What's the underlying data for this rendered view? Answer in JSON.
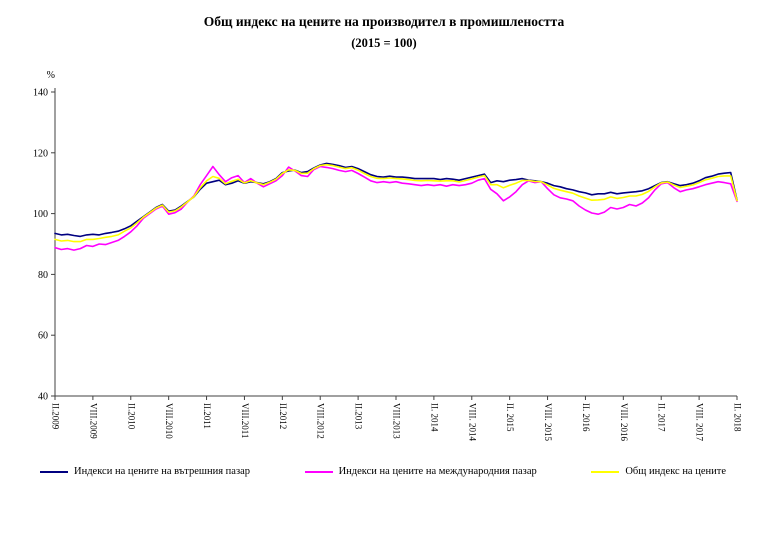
{
  "chart_data": {
    "type": "line",
    "title": "Общ индекс на цените на производител в промишлеността",
    "subtitle": "(2015 = 100)",
    "ylabel": "%",
    "ylim": [
      40,
      140
    ],
    "yticks": [
      40,
      60,
      80,
      100,
      120,
      140
    ],
    "grid": false,
    "legend_position": "bottom",
    "x_tick_every": 6,
    "x_tick_labels": [
      "II.2009",
      "VIII.2009",
      "II.2010",
      "VIII.2010",
      "II.2011",
      "VIII.2011",
      "II.2012",
      "VIII.2012",
      "II.2013",
      "VIII.2013",
      "II. 2014",
      "VIII. 2014",
      "II. 2015",
      "VIII. 2015",
      "II. 2016",
      "VIII. 2016",
      "II. 2017",
      "VIII. 2017",
      "II. 2018"
    ],
    "x_start": "II.2009",
    "x_end": "II.2018",
    "x_frequency": "monthly",
    "series": [
      {
        "name": "Индекси на цените на вътрешния пазар",
        "color": "#000080",
        "values": [
          93.5,
          93.0,
          93.2,
          92.8,
          92.5,
          93.0,
          93.2,
          93.0,
          93.5,
          93.8,
          94.2,
          95.0,
          96.0,
          97.5,
          99.0,
          100.5,
          102.0,
          103.0,
          100.8,
          101.2,
          102.5,
          104.0,
          105.5,
          108.0,
          110.0,
          110.5,
          111.0,
          109.5,
          110.0,
          110.8,
          110.0,
          110.5,
          110.2,
          109.8,
          110.5,
          111.5,
          113.5,
          114.0,
          114.3,
          113.5,
          113.8,
          115.0,
          116.0,
          116.5,
          116.2,
          115.8,
          115.2,
          115.5,
          114.8,
          113.8,
          112.8,
          112.2,
          112.0,
          112.3,
          112.0,
          112.0,
          111.8,
          111.5,
          111.5,
          111.5,
          111.5,
          111.2,
          111.5,
          111.3,
          111.0,
          111.5,
          112.0,
          112.5,
          113.0,
          110.2,
          110.8,
          110.5,
          111.0,
          111.2,
          111.5,
          111.0,
          110.8,
          110.5,
          110.0,
          109.2,
          108.8,
          108.2,
          107.8,
          107.2,
          106.8,
          106.2,
          106.5,
          106.5,
          107.0,
          106.5,
          106.8,
          107.0,
          107.2,
          107.5,
          108.2,
          109.2,
          110.2,
          110.5,
          109.8,
          109.2,
          109.5,
          110.0,
          110.8,
          111.8,
          112.3,
          113.0,
          113.3,
          113.5,
          104.5
        ]
      },
      {
        "name": "Индекси на цените на международния пазар",
        "color": "#FF00FF",
        "values": [
          88.8,
          88.2,
          88.5,
          88.0,
          88.5,
          89.5,
          89.2,
          90.0,
          89.8,
          90.5,
          91.2,
          92.5,
          94.0,
          96.0,
          98.5,
          100.0,
          101.5,
          102.5,
          99.8,
          100.3,
          101.5,
          103.8,
          105.8,
          109.5,
          112.5,
          115.5,
          112.8,
          110.5,
          111.8,
          112.5,
          110.2,
          111.5,
          110.0,
          108.8,
          109.8,
          110.8,
          112.5,
          115.3,
          114.0,
          112.5,
          112.2,
          114.5,
          115.5,
          115.2,
          114.8,
          114.2,
          113.8,
          114.2,
          113.2,
          112.0,
          110.8,
          110.2,
          110.5,
          110.2,
          110.5,
          110.0,
          109.8,
          109.5,
          109.2,
          109.5,
          109.2,
          109.5,
          109.0,
          109.5,
          109.2,
          109.5,
          110.0,
          111.0,
          111.5,
          108.0,
          106.5,
          104.2,
          105.5,
          107.2,
          109.5,
          110.8,
          110.2,
          110.5,
          108.2,
          106.2,
          105.2,
          104.8,
          104.2,
          102.5,
          101.2,
          100.2,
          99.8,
          100.5,
          102.0,
          101.5,
          102.0,
          103.0,
          102.5,
          103.5,
          105.2,
          107.8,
          109.8,
          110.2,
          108.5,
          107.2,
          107.8,
          108.2,
          108.8,
          109.5,
          110.0,
          110.5,
          110.2,
          109.8,
          104.0
        ]
      },
      {
        "name": "Общ индекс на цените",
        "color": "#FFFF00",
        "values": [
          91.5,
          91.0,
          91.2,
          90.8,
          90.8,
          91.5,
          91.5,
          91.8,
          92.2,
          92.5,
          93.0,
          94.2,
          95.3,
          97.0,
          98.8,
          100.3,
          101.8,
          102.8,
          100.5,
          100.9,
          102.2,
          103.9,
          105.6,
          108.5,
          110.8,
          112.2,
          111.6,
          109.8,
          110.6,
          111.3,
          110.1,
          110.8,
          110.1,
          109.5,
          110.3,
          111.3,
          113.2,
          114.4,
          114.2,
          113.2,
          113.3,
          114.8,
          115.8,
          116.1,
          115.8,
          115.3,
          114.8,
          115.1,
          114.3,
          113.2,
          112.2,
          111.6,
          111.5,
          111.7,
          111.5,
          111.4,
          111.2,
          110.9,
          110.8,
          110.9,
          110.8,
          110.7,
          110.8,
          110.8,
          110.4,
          110.9,
          111.4,
          112.0,
          112.5,
          109.5,
          109.5,
          108.5,
          109.3,
          110.0,
          110.9,
          110.9,
          110.6,
          110.5,
          109.4,
          108.3,
          107.7,
          107.2,
          106.7,
          105.8,
          105.1,
          104.4,
          104.5,
          104.7,
          105.5,
          105.0,
          105.3,
          105.8,
          105.8,
          106.3,
          107.3,
          108.8,
          110.1,
          110.4,
          109.4,
          108.6,
          109.0,
          109.4,
          110.2,
          111.1,
          111.6,
          112.2,
          112.4,
          112.4,
          104.3
        ]
      }
    ]
  }
}
